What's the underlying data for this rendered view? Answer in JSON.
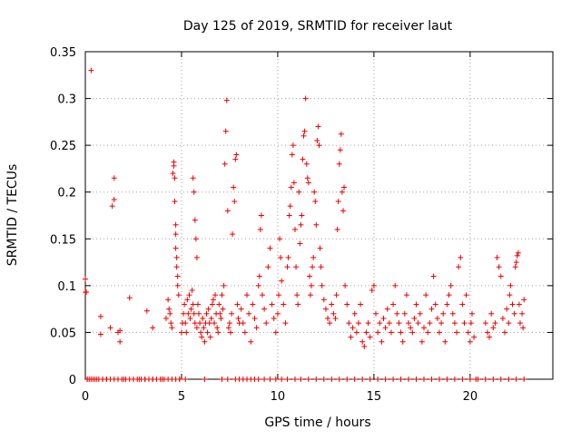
{
  "chart_data": {
    "type": "scatter",
    "title": "Day 125 of 2019, SRMTID for receiver laut",
    "xlabel": "GPS time / hours",
    "ylabel": "SRMTID / TECUs",
    "xlim": [
      0,
      24.3
    ],
    "ylim": [
      0,
      0.35
    ],
    "xticks": [
      0,
      5,
      10,
      15,
      20
    ],
    "xtick_labels": [
      "0",
      "5",
      "10",
      "15",
      "20"
    ],
    "yticks": [
      0,
      0.05,
      0.1,
      0.15,
      0.2,
      0.25,
      0.3,
      0.35
    ],
    "ytick_labels": [
      "0",
      "0.05",
      "0.1",
      "0.15",
      "0.2",
      "0.25",
      "0.3",
      "0.35"
    ],
    "grid": true,
    "marker": "+",
    "color": "#ee0000",
    "series": [
      {
        "name": "SRMTID",
        "points": [
          [
            0.0,
            0.107
          ],
          [
            0.0,
            0.093
          ],
          [
            0.05,
            0.093
          ],
          [
            0.1,
            0.0
          ],
          [
            0.2,
            0.0
          ],
          [
            0.3,
            0.33
          ],
          [
            0.4,
            0.0
          ],
          [
            0.6,
            0.0
          ],
          [
            0.8,
            0.067
          ],
          [
            0.8,
            0.048
          ],
          [
            0.9,
            0.0
          ],
          [
            1.1,
            0.0
          ],
          [
            1.3,
            0.055
          ],
          [
            1.4,
            0.185
          ],
          [
            1.5,
            0.192
          ],
          [
            1.5,
            0.215
          ],
          [
            1.7,
            0.05
          ],
          [
            1.8,
            0.052
          ],
          [
            1.8,
            0.04
          ],
          [
            2.0,
            0.0
          ],
          [
            2.3,
            0.087
          ],
          [
            2.5,
            0.0
          ],
          [
            2.8,
            0.0
          ],
          [
            3.1,
            0.0
          ],
          [
            3.2,
            0.073
          ],
          [
            3.5,
            0.0
          ],
          [
            3.5,
            0.055
          ],
          [
            4.0,
            0.0
          ],
          [
            4.2,
            0.065
          ],
          [
            4.3,
            0.085
          ],
          [
            4.35,
            0.075
          ],
          [
            4.4,
            0.07
          ],
          [
            4.45,
            0.06
          ],
          [
            4.5,
            0.055
          ],
          [
            4.55,
            0.22
          ],
          [
            4.6,
            0.228
          ],
          [
            4.6,
            0.232
          ],
          [
            4.65,
            0.215
          ],
          [
            4.65,
            0.19
          ],
          [
            4.7,
            0.165
          ],
          [
            4.7,
            0.155
          ],
          [
            4.7,
            0.14
          ],
          [
            4.75,
            0.13
          ],
          [
            4.75,
            0.12
          ],
          [
            4.8,
            0.11
          ],
          [
            4.8,
            0.1
          ],
          [
            4.85,
            0.09
          ],
          [
            4.9,
            0.0
          ],
          [
            5.0,
            0.05
          ],
          [
            5.05,
            0.06
          ],
          [
            5.1,
            0.07
          ],
          [
            5.15,
            0.08
          ],
          [
            5.2,
            0.06
          ],
          [
            5.25,
            0.05
          ],
          [
            5.3,
            0.085
          ],
          [
            5.35,
            0.07
          ],
          [
            5.4,
            0.09
          ],
          [
            5.45,
            0.065
          ],
          [
            5.5,
            0.075
          ],
          [
            5.55,
            0.095
          ],
          [
            5.6,
            0.08
          ],
          [
            5.6,
            0.215
          ],
          [
            5.65,
            0.2
          ],
          [
            5.65,
            0.07
          ],
          [
            5.7,
            0.17
          ],
          [
            5.7,
            0.06
          ],
          [
            5.75,
            0.15
          ],
          [
            5.8,
            0.13
          ],
          [
            5.8,
            0.055
          ],
          [
            5.85,
            0.08
          ],
          [
            5.9,
            0.07
          ],
          [
            5.95,
            0.06
          ],
          [
            6.0,
            0.05
          ],
          [
            6.05,
            0.045
          ],
          [
            6.1,
            0.065
          ],
          [
            6.15,
            0.055
          ],
          [
            6.2,
            0.04
          ],
          [
            6.25,
            0.06
          ],
          [
            6.3,
            0.07
          ],
          [
            6.35,
            0.05
          ],
          [
            6.4,
            0.075
          ],
          [
            6.45,
            0.06
          ],
          [
            6.5,
            0.045
          ],
          [
            6.55,
            0.065
          ],
          [
            6.6,
            0.08
          ],
          [
            6.65,
            0.085
          ],
          [
            6.7,
            0.06
          ],
          [
            6.75,
            0.09
          ],
          [
            6.8,
            0.07
          ],
          [
            6.85,
            0.055
          ],
          [
            6.9,
            0.05
          ],
          [
            6.95,
            0.08
          ],
          [
            7.0,
            0.07
          ],
          [
            7.05,
            0.065
          ],
          [
            7.1,
            0.09
          ],
          [
            7.15,
            0.075
          ],
          [
            7.2,
            0.1
          ],
          [
            7.25,
            0.23
          ],
          [
            7.3,
            0.265
          ],
          [
            7.35,
            0.298
          ],
          [
            7.4,
            0.18
          ],
          [
            7.45,
            0.055
          ],
          [
            7.5,
            0.06
          ],
          [
            7.55,
            0.05
          ],
          [
            7.6,
            0.07
          ],
          [
            7.65,
            0.155
          ],
          [
            7.7,
            0.205
          ],
          [
            7.75,
            0.19
          ],
          [
            7.8,
            0.235
          ],
          [
            7.85,
            0.24
          ],
          [
            7.9,
            0.08
          ],
          [
            7.95,
            0.065
          ],
          [
            8.0,
            0.06
          ],
          [
            8.1,
            0.075
          ],
          [
            8.2,
            0.06
          ],
          [
            8.3,
            0.05
          ],
          [
            8.4,
            0.09
          ],
          [
            8.5,
            0.07
          ],
          [
            8.6,
            0.04
          ],
          [
            8.7,
            0.08
          ],
          [
            8.8,
            0.065
          ],
          [
            8.9,
            0.055
          ],
          [
            9.0,
            0.1
          ],
          [
            9.05,
            0.11
          ],
          [
            9.1,
            0.16
          ],
          [
            9.15,
            0.175
          ],
          [
            9.2,
            0.09
          ],
          [
            9.3,
            0.075
          ],
          [
            9.4,
            0.06
          ],
          [
            9.5,
            0.12
          ],
          [
            9.6,
            0.14
          ],
          [
            9.7,
            0.08
          ],
          [
            9.8,
            0.065
          ],
          [
            9.9,
            0.05
          ],
          [
            10.0,
            0.07
          ],
          [
            10.05,
            0.09
          ],
          [
            10.1,
            0.15
          ],
          [
            10.15,
            0.13
          ],
          [
            10.2,
            0.105
          ],
          [
            10.3,
            0.08
          ],
          [
            10.4,
            0.06
          ],
          [
            10.5,
            0.12
          ],
          [
            10.55,
            0.13
          ],
          [
            10.6,
            0.175
          ],
          [
            10.65,
            0.185
          ],
          [
            10.7,
            0.205
          ],
          [
            10.75,
            0.24
          ],
          [
            10.8,
            0.25
          ],
          [
            10.85,
            0.21
          ],
          [
            10.9,
            0.16
          ],
          [
            10.95,
            0.12
          ],
          [
            11.0,
            0.09
          ],
          [
            11.05,
            0.08
          ],
          [
            11.1,
            0.2
          ],
          [
            11.15,
            0.145
          ],
          [
            11.2,
            0.165
          ],
          [
            11.25,
            0.175
          ],
          [
            11.3,
            0.235
          ],
          [
            11.35,
            0.26
          ],
          [
            11.4,
            0.265
          ],
          [
            11.45,
            0.3
          ],
          [
            11.5,
            0.23
          ],
          [
            11.55,
            0.215
          ],
          [
            11.6,
            0.21
          ],
          [
            11.65,
            0.11
          ],
          [
            11.7,
            0.09
          ],
          [
            11.75,
            0.1
          ],
          [
            11.8,
            0.12
          ],
          [
            11.85,
            0.13
          ],
          [
            11.9,
            0.2
          ],
          [
            11.95,
            0.19
          ],
          [
            12.0,
            0.165
          ],
          [
            12.05,
            0.255
          ],
          [
            12.1,
            0.27
          ],
          [
            12.15,
            0.25
          ],
          [
            12.2,
            0.14
          ],
          [
            12.25,
            0.12
          ],
          [
            12.3,
            0.1
          ],
          [
            12.4,
            0.085
          ],
          [
            12.5,
            0.075
          ],
          [
            12.6,
            0.065
          ],
          [
            12.7,
            0.06
          ],
          [
            12.8,
            0.08
          ],
          [
            12.9,
            0.07
          ],
          [
            13.0,
            0.065
          ],
          [
            13.05,
            0.09
          ],
          [
            13.1,
            0.16
          ],
          [
            13.15,
            0.19
          ],
          [
            13.2,
            0.23
          ],
          [
            13.25,
            0.245
          ],
          [
            13.3,
            0.262
          ],
          [
            13.35,
            0.2
          ],
          [
            13.4,
            0.18
          ],
          [
            13.45,
            0.205
          ],
          [
            13.5,
            0.1
          ],
          [
            13.6,
            0.08
          ],
          [
            13.7,
            0.06
          ],
          [
            13.8,
            0.045
          ],
          [
            13.9,
            0.055
          ],
          [
            14.0,
            0.07
          ],
          [
            14.1,
            0.05
          ],
          [
            14.2,
            0.06
          ],
          [
            14.3,
            0.08
          ],
          [
            14.4,
            0.04
          ],
          [
            14.5,
            0.035
          ],
          [
            14.6,
            0.05
          ],
          [
            14.7,
            0.06
          ],
          [
            14.8,
            0.045
          ],
          [
            14.9,
            0.095
          ],
          [
            15.0,
            0.1
          ],
          [
            15.1,
            0.07
          ],
          [
            15.2,
            0.05
          ],
          [
            15.3,
            0.06
          ],
          [
            15.4,
            0.04
          ],
          [
            15.5,
            0.065
          ],
          [
            15.6,
            0.055
          ],
          [
            15.7,
            0.075
          ],
          [
            15.8,
            0.06
          ],
          [
            15.9,
            0.05
          ],
          [
            16.0,
            0.08
          ],
          [
            16.1,
            0.1
          ],
          [
            16.2,
            0.07
          ],
          [
            16.3,
            0.06
          ],
          [
            16.4,
            0.05
          ],
          [
            16.5,
            0.04
          ],
          [
            16.6,
            0.07
          ],
          [
            16.7,
            0.09
          ],
          [
            16.8,
            0.06
          ],
          [
            16.9,
            0.055
          ],
          [
            17.0,
            0.05
          ],
          [
            17.1,
            0.065
          ],
          [
            17.2,
            0.08
          ],
          [
            17.3,
            0.06
          ],
          [
            17.4,
            0.07
          ],
          [
            17.5,
            0.04
          ],
          [
            17.6,
            0.055
          ],
          [
            17.7,
            0.09
          ],
          [
            17.8,
            0.05
          ],
          [
            17.9,
            0.06
          ],
          [
            18.0,
            0.075
          ],
          [
            18.1,
            0.11
          ],
          [
            18.2,
            0.08
          ],
          [
            18.3,
            0.065
          ],
          [
            18.4,
            0.05
          ],
          [
            18.5,
            0.06
          ],
          [
            18.6,
            0.07
          ],
          [
            18.7,
            0.04
          ],
          [
            18.8,
            0.08
          ],
          [
            18.9,
            0.09
          ],
          [
            19.0,
            0.1
          ],
          [
            19.1,
            0.07
          ],
          [
            19.2,
            0.06
          ],
          [
            19.3,
            0.05
          ],
          [
            19.4,
            0.12
          ],
          [
            19.5,
            0.13
          ],
          [
            19.6,
            0.08
          ],
          [
            19.7,
            0.06
          ],
          [
            19.8,
            0.09
          ],
          [
            19.9,
            0.05
          ],
          [
            20.0,
            0.04
          ],
          [
            20.05,
            0.06
          ],
          [
            20.1,
            0.07
          ],
          [
            20.2,
            0.045
          ],
          [
            20.3,
            0.0
          ],
          [
            20.8,
            0.06
          ],
          [
            20.9,
            0.05
          ],
          [
            21.0,
            0.045
          ],
          [
            21.1,
            0.07
          ],
          [
            21.2,
            0.055
          ],
          [
            21.3,
            0.06
          ],
          [
            21.4,
            0.13
          ],
          [
            21.5,
            0.12
          ],
          [
            21.6,
            0.11
          ],
          [
            21.7,
            0.065
          ],
          [
            21.8,
            0.05
          ],
          [
            21.9,
            0.075
          ],
          [
            22.0,
            0.06
          ],
          [
            22.05,
            0.09
          ],
          [
            22.1,
            0.1
          ],
          [
            22.2,
            0.08
          ],
          [
            22.3,
            0.07
          ],
          [
            22.35,
            0.12
          ],
          [
            22.4,
            0.125
          ],
          [
            22.45,
            0.132
          ],
          [
            22.5,
            0.135
          ],
          [
            22.55,
            0.08
          ],
          [
            22.6,
            0.06
          ],
          [
            22.7,
            0.07
          ],
          [
            22.75,
            0.055
          ],
          [
            22.8,
            0.085
          ]
        ],
        "zero_times": [
          0.1,
          0.3,
          0.5,
          0.7,
          0.9,
          1.1,
          1.3,
          1.5,
          1.7,
          1.9,
          2.1,
          2.3,
          2.5,
          2.7,
          2.9,
          3.1,
          3.3,
          3.5,
          3.7,
          3.9,
          4.1,
          4.3,
          4.5,
          4.7,
          4.9,
          5.2,
          6.2,
          7.1,
          7.4,
          7.8,
          8.0,
          8.2,
          8.4,
          8.6,
          8.8,
          9.0,
          9.3,
          9.6,
          9.9,
          10.2,
          10.5,
          10.9,
          11.2,
          11.6,
          12.0,
          12.4,
          12.8,
          13.2,
          13.6,
          14.0,
          14.4,
          14.8,
          15.2,
          15.6,
          16.0,
          16.4,
          16.8,
          17.2,
          17.6,
          18.0,
          18.4,
          18.8,
          19.2,
          19.6,
          20.0,
          20.4,
          20.8,
          21.2,
          21.6,
          22.0,
          22.4,
          22.8
        ]
      }
    ]
  }
}
